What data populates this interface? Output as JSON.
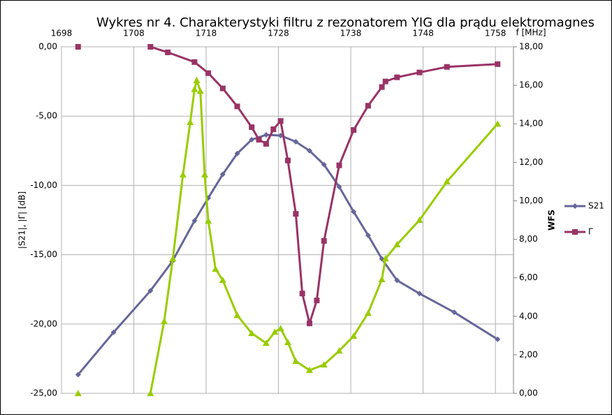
{
  "chart_data": {
    "type": "line",
    "title": "Wykres nr 4. Charakterystyki filtru  z rezonatorem YIG dla prądu elektromagnes",
    "x_label": "f [MHz]",
    "y_label": "|S21|, |Γ| [dB]",
    "y2_label": "WFS",
    "xlim": [
      1698,
      1760.5
    ],
    "xticks": [
      1698,
      1708,
      1718,
      1728,
      1738,
      1748,
      1758
    ],
    "ylim": [
      -25,
      0
    ],
    "yticks": [
      {
        "value": -25,
        "label": "-25,00"
      },
      {
        "value": -20,
        "label": "-20,00"
      },
      {
        "value": -15,
        "label": "-15,00"
      },
      {
        "value": -10,
        "label": "-10,00"
      },
      {
        "value": -5,
        "label": "-5,00"
      },
      {
        "value": 0,
        "label": "0,00"
      }
    ],
    "y2lim": [
      0,
      18
    ],
    "y2ticks": [
      {
        "value": 0,
        "label": "0,00"
      },
      {
        "value": 2,
        "label": "2,00"
      },
      {
        "value": 4,
        "label": "4,00"
      },
      {
        "value": 6,
        "label": "6,00"
      },
      {
        "value": 8,
        "label": "8,00"
      },
      {
        "value": 10,
        "label": "10,00"
      },
      {
        "value": 12,
        "label": "12,00"
      },
      {
        "value": 14,
        "label": "14,00"
      },
      {
        "value": 16,
        "label": "16,00"
      },
      {
        "value": 18,
        "label": "18,00"
      }
    ],
    "grid": true,
    "series": [
      {
        "name": "S21",
        "color": "#666699",
        "marker": "diamond",
        "x": [
          1700.3,
          1705.2,
          1710.3,
          1713.3,
          1716.4,
          1718.3,
          1720.3,
          1722.3,
          1724.3,
          1726.3,
          1728.3,
          1730.4,
          1732.3,
          1734.3,
          1736.4,
          1738.4,
          1740.4,
          1742.3,
          1744.4,
          1747.5,
          1752.3,
          1758.3
        ],
        "values": [
          -23.65,
          -20.6,
          -17.6,
          -15.5,
          -12.55,
          -10.9,
          -9.2,
          -7.7,
          -6.7,
          -6.35,
          -6.4,
          -6.85,
          -7.5,
          -8.5,
          -10.1,
          -11.9,
          -13.6,
          -15.3,
          -16.85,
          -17.8,
          -19.15,
          -21.1
        ]
      },
      {
        "name": "Γ",
        "color": "#993366",
        "marker": "square",
        "x": [
          1700.3,
          1705,
          1710.3,
          1712.7,
          1716.4,
          1718.3,
          1720.3,
          1722.3,
          1724.3,
          1725.3,
          1726.3,
          1727.3,
          1728.3,
          1729.3,
          1730.4,
          1731.3,
          1732.3,
          1733.3,
          1734.3,
          1736.4,
          1738.4,
          1740.4,
          1742.3,
          1742.8,
          1744.4,
          1747.5,
          1751.3,
          1758.3
        ],
        "values": [
          0,
          null,
          0,
          -0.4,
          -1.1,
          -1.9,
          -3.0,
          -4.3,
          -5.8,
          -6.7,
          -7.0,
          -5.95,
          -5.35,
          -8.2,
          -12.05,
          -17.8,
          -19.95,
          -18.3,
          -14.0,
          -8.55,
          -6.0,
          -4.25,
          -2.9,
          -2.5,
          -2.2,
          -1.85,
          -1.45,
          -1.25
        ]
      },
      {
        "color": "#99cc00",
        "marker": "triangle",
        "axis": "y2",
        "x": [
          1700.3,
          1705,
          1710.3,
          1712.2,
          1713.4,
          1714.8,
          1715.8,
          1716.4,
          1716.7,
          1717.2,
          1717.8,
          1718.3,
          1719.3,
          1720.3,
          1722.3,
          1724.3,
          1726.3,
          1727.5,
          1728.3,
          1729.3,
          1730.4,
          1732.3,
          1734.3,
          1736.4,
          1738.4,
          1740.4,
          1742.3,
          1742.8,
          1744.4,
          1747.5,
          1751.3,
          1758.3
        ],
        "values": [
          0,
          null,
          0,
          3.74,
          7.0,
          11.36,
          14.08,
          15.8,
          16.26,
          15.7,
          11.36,
          8.96,
          6.46,
          5.88,
          4.06,
          3.12,
          2.61,
          3.19,
          3.37,
          2.65,
          1.67,
          1.2,
          1.49,
          2.21,
          2.98,
          4.17,
          5.92,
          7.0,
          7.73,
          9.0,
          11.0,
          14.0
        ]
      }
    ]
  }
}
